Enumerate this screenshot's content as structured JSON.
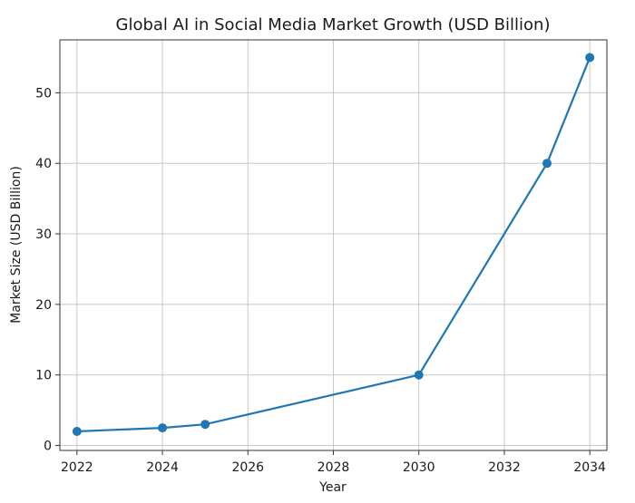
{
  "chart_data": {
    "type": "line",
    "title": "Global AI in Social Media Market Growth (USD Billion)",
    "xlabel": "Year",
    "ylabel": "Market Size (USD Billion)",
    "xlim": [
      2021.6,
      2034.4
    ],
    "ylim": [
      -0.7,
      57.5
    ],
    "xticks": [
      2022,
      2024,
      2026,
      2028,
      2030,
      2032,
      2034
    ],
    "yticks": [
      0,
      10,
      20,
      30,
      40,
      50
    ],
    "grid": true,
    "series": [
      {
        "color": "#1f77b4",
        "marker": "circle",
        "points": [
          {
            "x": 2022,
            "y": 2.0
          },
          {
            "x": 2024,
            "y": 2.5
          },
          {
            "x": 2025,
            "y": 3.0
          },
          {
            "x": 2030,
            "y": 10.0
          },
          {
            "x": 2033,
            "y": 40.0
          },
          {
            "x": 2034,
            "y": 55.0
          }
        ]
      }
    ]
  }
}
